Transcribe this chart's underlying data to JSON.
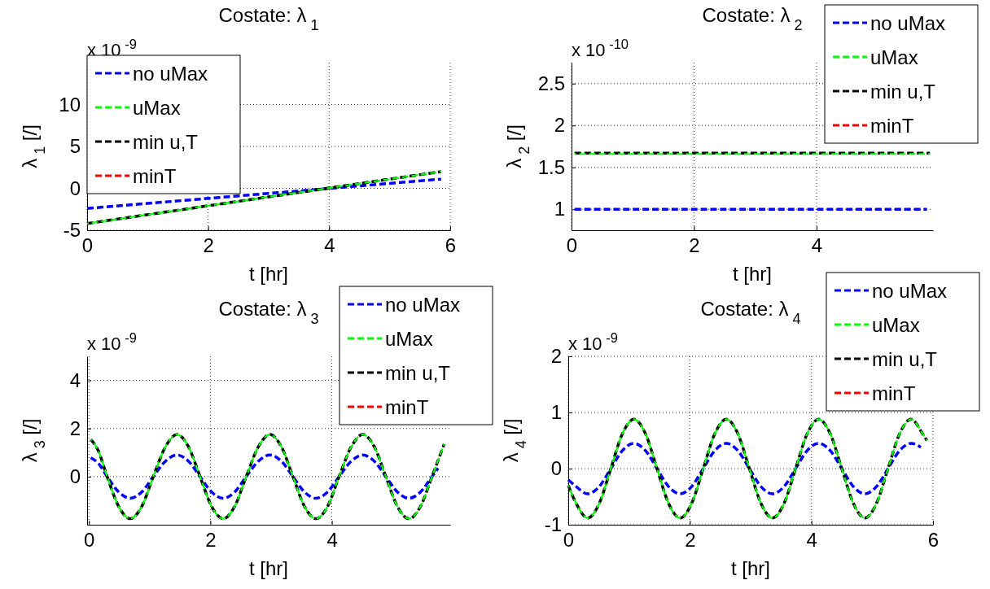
{
  "chart_data": [
    {
      "type": "line",
      "title": "Costate: λ$_{1}$",
      "xlabel": "t [hr]",
      "ylabel": "λ$_{1}$ [/]",
      "annotations": [
        "x 10$^{-9}$"
      ],
      "xlim": [
        0,
        6
      ],
      "xticks": [
        0,
        2,
        4,
        6
      ],
      "ylim": [
        -5,
        15
      ],
      "yticks": [
        -5,
        0,
        5,
        10
      ],
      "grid": true,
      "legend": "top left",
      "line_style": "dashed",
      "marker": "none",
      "series": [
        {
          "name": "no uMax",
          "color": "#0000ff",
          "x": [
            0,
            5.85
          ],
          "values": [
            -2.4,
            1.1
          ]
        },
        {
          "name": "uMax",
          "color": "#00ff00",
          "x": [
            0,
            5.85
          ],
          "values": [
            -4.2,
            2
          ]
        },
        {
          "name": "min u,T",
          "color": "#000000",
          "x": [
            0,
            5.85
          ],
          "values": [
            -4.2,
            2
          ]
        },
        {
          "name": "minT",
          "color": "#ff0000"
        }
      ]
    },
    {
      "type": "line",
      "title": "Costate: λ$_{2}$",
      "xlabel": "t [hr]",
      "ylabel": "λ$_{2}$ [/]",
      "annotations": [
        "x 10$^{-10}$"
      ],
      "xlim": [
        0,
        5.9
      ],
      "xticks": [
        0,
        2,
        4
      ],
      "ylim": [
        0.75,
        2.75
      ],
      "yticks": [
        1,
        1.5,
        2,
        2.5
      ],
      "grid": true,
      "legend": "top right",
      "line_style": "dashed",
      "marker": "none",
      "series": [
        {
          "name": "no uMax",
          "color": "#0000ff",
          "x": [
            0.05,
            5.8
          ],
          "values": [
            1,
            1
          ]
        },
        {
          "name": "uMax",
          "color": "#00ff00",
          "x": [
            0.05,
            5.85
          ],
          "values": [
            1.66,
            1.66
          ]
        },
        {
          "name": "min u,T",
          "color": "#000000",
          "x": [
            0.05,
            5.85
          ],
          "values": [
            1.67,
            1.67
          ]
        },
        {
          "name": "minT",
          "color": "#ff0000"
        }
      ]
    },
    {
      "type": "line",
      "title": "Costate: λ$_{3}$",
      "xlabel": "t [hr]",
      "ylabel": "λ$_{3}$ [/]",
      "annotations": [
        "x 10$^{-9}$"
      ],
      "xlim": [
        -0.03,
        5.95
      ],
      "xticks": [
        0,
        2,
        4
      ],
      "ylim": [
        -2,
        5
      ],
      "yticks": [
        0,
        2,
        4
      ],
      "grid": true,
      "legend": "top right",
      "line_style": "dashed",
      "marker": "none",
      "series": [
        {
          "name": "no uMax",
          "color": "#0000ff",
          "x": [
            0.03,
            0.15,
            0.3,
            0.49,
            0.68,
            0.87,
            1.06,
            1.26,
            1.45,
            1.64,
            1.83,
            2.02,
            2.21,
            2.4,
            2.59,
            2.79,
            2.98,
            3.17,
            3.36,
            3.55,
            3.74,
            3.93,
            4.12,
            4.32,
            4.51,
            4.7,
            4.89,
            5.08,
            5.27,
            5.46,
            5.65,
            5.75
          ],
          "values": [
            0.78,
            0.57,
            0,
            -0.64,
            -0.9,
            -0.64,
            0,
            0.64,
            0.9,
            0.64,
            0,
            -0.64,
            -0.9,
            -0.64,
            0,
            0.64,
            0.9,
            0.64,
            0,
            -0.64,
            -0.9,
            -0.64,
            0,
            0.64,
            0.9,
            0.64,
            0,
            -0.64,
            -0.9,
            -0.64,
            0,
            0.35
          ]
        },
        {
          "name": "uMax",
          "color": "#00ff00",
          "x": [
            0.03,
            0.15,
            0.3,
            0.49,
            0.68,
            0.87,
            1.06,
            1.26,
            1.45,
            1.64,
            1.83,
            2.02,
            2.21,
            2.4,
            2.59,
            2.79,
            2.98,
            3.17,
            3.36,
            3.55,
            3.74,
            3.93,
            4.12,
            4.32,
            4.51,
            4.7,
            4.89,
            5.08,
            5.27,
            5.46,
            5.65,
            5.85
          ],
          "values": [
            1.55,
            1.1,
            0,
            -1.24,
            -1.75,
            -1.24,
            0,
            1.24,
            1.75,
            1.24,
            0,
            -1.24,
            -1.75,
            -1.24,
            0,
            1.24,
            1.75,
            1.24,
            0,
            -1.24,
            -1.75,
            -1.24,
            0,
            1.24,
            1.75,
            1.24,
            0,
            -1.24,
            -1.75,
            -1.24,
            0,
            1.35
          ]
        },
        {
          "name": "min u,T",
          "color": "#000000",
          "x": [
            0.03,
            0.15,
            0.3,
            0.49,
            0.68,
            0.87,
            1.06,
            1.26,
            1.45,
            1.64,
            1.83,
            2.02,
            2.21,
            2.4,
            2.59,
            2.79,
            2.98,
            3.17,
            3.36,
            3.55,
            3.74,
            3.93,
            4.12,
            4.32,
            4.51,
            4.7,
            4.89,
            5.08,
            5.27,
            5.46,
            5.65,
            5.85
          ],
          "values": [
            1.55,
            1.1,
            0,
            -1.24,
            -1.75,
            -1.24,
            0,
            1.24,
            1.75,
            1.24,
            0,
            -1.24,
            -1.75,
            -1.24,
            0,
            1.24,
            1.75,
            1.24,
            0,
            -1.24,
            -1.75,
            -1.24,
            0,
            1.24,
            1.75,
            1.24,
            0,
            -1.24,
            -1.75,
            -1.24,
            0,
            1.35
          ]
        },
        {
          "name": "minT",
          "color": "#ff0000"
        }
      ]
    },
    {
      "type": "line",
      "title": "Costate: λ$_{4}$",
      "xlabel": "t [hr]",
      "ylabel": "λ$_{4}$ [/]",
      "annotations": [
        "x 10$^{-9}$"
      ],
      "xlim": [
        0,
        6
      ],
      "xticks": [
        0,
        2,
        4,
        6
      ],
      "ylim": [
        -1,
        2
      ],
      "yticks": [
        -1,
        0,
        1,
        2
      ],
      "grid": true,
      "legend": "top right",
      "line_style": "dashed",
      "marker": "none",
      "series": [
        {
          "name": "no uMax",
          "color": "#0000ff",
          "x": [
            0,
            0.13,
            0.32,
            0.51,
            0.7,
            0.89,
            1.08,
            1.27,
            1.46,
            1.65,
            1.84,
            2.03,
            2.22,
            2.41,
            2.6,
            2.79,
            2.98,
            3.17,
            3.36,
            3.55,
            3.74,
            3.93,
            4.12,
            4.31,
            4.5,
            4.69,
            4.88,
            5.07,
            5.26,
            5.45,
            5.64,
            5.8
          ],
          "values": [
            -0.2,
            -0.32,
            -0.45,
            -0.32,
            0,
            0.32,
            0.45,
            0.32,
            0,
            -0.32,
            -0.45,
            -0.32,
            0,
            0.32,
            0.45,
            0.32,
            0,
            -0.32,
            -0.45,
            -0.32,
            0,
            0.32,
            0.45,
            0.32,
            0,
            -0.32,
            -0.45,
            -0.32,
            0,
            0.32,
            0.45,
            0.38
          ]
        },
        {
          "name": "uMax",
          "color": "#00ff00",
          "x": [
            0,
            0.13,
            0.32,
            0.51,
            0.7,
            0.89,
            1.08,
            1.27,
            1.46,
            1.65,
            1.84,
            2.03,
            2.22,
            2.41,
            2.6,
            2.79,
            2.98,
            3.17,
            3.36,
            3.55,
            3.74,
            3.93,
            4.12,
            4.31,
            4.5,
            4.69,
            4.88,
            5.07,
            5.26,
            5.45,
            5.64,
            5.83,
            5.9
          ],
          "values": [
            -0.3,
            -0.62,
            -0.88,
            -0.62,
            0,
            0.62,
            0.88,
            0.62,
            0,
            -0.62,
            -0.88,
            -0.62,
            0,
            0.62,
            0.88,
            0.62,
            0,
            -0.62,
            -0.88,
            -0.62,
            0,
            0.62,
            0.88,
            0.62,
            0,
            -0.62,
            -0.88,
            -0.62,
            0,
            0.62,
            0.88,
            0.62,
            0.5
          ]
        },
        {
          "name": "min u,T",
          "color": "#000000",
          "x": [
            0,
            0.13,
            0.32,
            0.51,
            0.7,
            0.89,
            1.08,
            1.27,
            1.46,
            1.65,
            1.84,
            2.03,
            2.22,
            2.41,
            2.6,
            2.79,
            2.98,
            3.17,
            3.36,
            3.55,
            3.74,
            3.93,
            4.12,
            4.31,
            4.5,
            4.69,
            4.88,
            5.07,
            5.26,
            5.45,
            5.64,
            5.83,
            5.9
          ],
          "values": [
            -0.3,
            -0.62,
            -0.88,
            -0.62,
            0,
            0.62,
            0.88,
            0.62,
            0,
            -0.62,
            -0.88,
            -0.62,
            0,
            0.62,
            0.88,
            0.62,
            0,
            -0.62,
            -0.88,
            -0.62,
            0,
            0.62,
            0.88,
            0.62,
            0,
            -0.62,
            -0.88,
            -0.62,
            0,
            0.62,
            0.88,
            0.62,
            0.5
          ]
        },
        {
          "name": "minT",
          "color": "#ff0000"
        }
      ]
    }
  ]
}
